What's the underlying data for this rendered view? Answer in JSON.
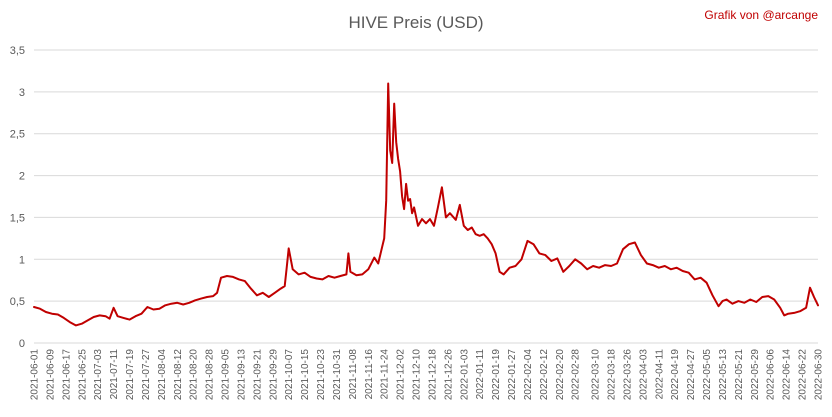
{
  "chart_data": {
    "type": "line",
    "title": "HIVE Preis (USD)",
    "annotation": "Grafik von @arcange",
    "xlabel": "",
    "ylabel": "",
    "ylim": [
      0,
      3.5
    ],
    "yticks": [
      "0",
      "0,5",
      "1",
      "1,5",
      "2",
      "2,5",
      "3",
      "3,5"
    ],
    "ytick_values": [
      0,
      0.5,
      1,
      1.5,
      2,
      2.5,
      3,
      3.5
    ],
    "grid": true,
    "line_color": "#c00000",
    "x_start": "2021-06-01",
    "x_end": "2022-06-30",
    "xticks": [
      "2021-06-01",
      "2021-06-09",
      "2021-06-17",
      "2021-06-25",
      "2021-07-03",
      "2021-07-11",
      "2021-07-19",
      "2021-07-27",
      "2021-08-04",
      "2021-08-12",
      "2021-08-20",
      "2021-08-28",
      "2021-09-05",
      "2021-09-13",
      "2021-09-21",
      "2021-09-29",
      "2021-10-07",
      "2021-10-15",
      "2021-10-23",
      "2021-10-31",
      "2021-11-08",
      "2021-11-16",
      "2021-11-24",
      "2021-12-02",
      "2021-12-10",
      "2021-12-18",
      "2021-12-26",
      "2022-01-03",
      "2022-01-11",
      "2022-01-19",
      "2022-01-27",
      "2022-02-04",
      "2022-02-12",
      "2022-02-20",
      "2022-02-28",
      "2022-03-10",
      "2022-03-18",
      "2022-03-26",
      "2022-04-03",
      "2022-04-11",
      "2022-04-19",
      "2022-04-27",
      "2022-05-05",
      "2022-05-13",
      "2022-05-21",
      "2022-05-29",
      "2022-06-06",
      "2022-06-14",
      "2022-06-22",
      "2022-06-30"
    ],
    "series": [
      {
        "x": [
          "2021-06-01",
          "2021-06-04",
          "2021-06-07",
          "2021-06-10",
          "2021-06-13",
          "2021-06-16",
          "2021-06-19",
          "2021-06-22",
          "2021-06-25",
          "2021-06-28",
          "2021-07-01",
          "2021-07-04",
          "2021-07-07",
          "2021-07-09",
          "2021-07-11",
          "2021-07-13",
          "2021-07-16",
          "2021-07-19",
          "2021-07-22",
          "2021-07-25",
          "2021-07-28",
          "2021-07-31",
          "2021-08-03",
          "2021-08-06",
          "2021-08-09",
          "2021-08-12",
          "2021-08-15",
          "2021-08-18",
          "2021-08-21",
          "2021-08-24",
          "2021-08-27",
          "2021-08-30",
          "2021-09-01",
          "2021-09-03",
          "2021-09-06",
          "2021-09-09",
          "2021-09-12",
          "2021-09-15",
          "2021-09-18",
          "2021-09-21",
          "2021-09-24",
          "2021-09-27",
          "2021-09-30",
          "2021-10-03",
          "2021-10-05",
          "2021-10-06",
          "2021-10-07",
          "2021-10-09",
          "2021-10-12",
          "2021-10-15",
          "2021-10-18",
          "2021-10-21",
          "2021-10-24",
          "2021-10-27",
          "2021-10-30",
          "2021-11-02",
          "2021-11-05",
          "2021-11-06",
          "2021-11-07",
          "2021-11-10",
          "2021-11-13",
          "2021-11-16",
          "2021-11-19",
          "2021-11-21",
          "2021-11-23",
          "2021-11-24",
          "2021-11-25",
          "2021-11-26",
          "2021-11-27",
          "2021-11-28",
          "2021-11-29",
          "2021-11-30",
          "2021-12-01",
          "2021-12-02",
          "2021-12-03",
          "2021-12-04",
          "2021-12-05",
          "2021-12-06",
          "2021-12-07",
          "2021-12-08",
          "2021-12-09",
          "2021-12-11",
          "2021-12-13",
          "2021-12-15",
          "2021-12-17",
          "2021-12-19",
          "2021-12-21",
          "2021-12-23",
          "2021-12-25",
          "2021-12-27",
          "2021-12-30",
          "2022-01-01",
          "2022-01-03",
          "2022-01-05",
          "2022-01-07",
          "2022-01-09",
          "2022-01-11",
          "2022-01-13",
          "2022-01-15",
          "2022-01-17",
          "2022-01-19",
          "2022-01-21",
          "2022-01-23",
          "2022-01-26",
          "2022-01-29",
          "2022-02-01",
          "2022-02-04",
          "2022-02-07",
          "2022-02-10",
          "2022-02-13",
          "2022-02-16",
          "2022-02-19",
          "2022-02-22",
          "2022-02-25",
          "2022-02-28",
          "2022-03-03",
          "2022-03-06",
          "2022-03-09",
          "2022-03-12",
          "2022-03-15",
          "2022-03-18",
          "2022-03-21",
          "2022-03-24",
          "2022-03-27",
          "2022-03-30",
          "2022-04-02",
          "2022-04-05",
          "2022-04-08",
          "2022-04-11",
          "2022-04-14",
          "2022-04-17",
          "2022-04-20",
          "2022-04-23",
          "2022-04-26",
          "2022-04-29",
          "2022-05-02",
          "2022-05-05",
          "2022-05-08",
          "2022-05-11",
          "2022-05-13",
          "2022-05-15",
          "2022-05-18",
          "2022-05-21",
          "2022-05-24",
          "2022-05-27",
          "2022-05-30",
          "2022-06-02",
          "2022-06-05",
          "2022-06-08",
          "2022-06-11",
          "2022-06-13",
          "2022-06-15",
          "2022-06-18",
          "2022-06-21",
          "2022-06-24",
          "2022-06-26",
          "2022-06-28",
          "2022-06-30"
        ],
        "y": [
          0.43,
          0.41,
          0.37,
          0.35,
          0.34,
          0.3,
          0.25,
          0.21,
          0.23,
          0.27,
          0.31,
          0.33,
          0.32,
          0.29,
          0.42,
          0.32,
          0.3,
          0.28,
          0.32,
          0.35,
          0.43,
          0.4,
          0.41,
          0.45,
          0.47,
          0.48,
          0.46,
          0.48,
          0.51,
          0.53,
          0.55,
          0.56,
          0.6,
          0.78,
          0.8,
          0.79,
          0.76,
          0.74,
          0.65,
          0.57,
          0.6,
          0.55,
          0.6,
          0.65,
          0.68,
          0.9,
          1.13,
          0.88,
          0.82,
          0.84,
          0.79,
          0.77,
          0.76,
          0.8,
          0.78,
          0.8,
          0.82,
          1.07,
          0.85,
          0.81,
          0.82,
          0.88,
          1.02,
          0.95,
          1.15,
          1.25,
          1.7,
          3.1,
          2.3,
          2.15,
          2.86,
          2.4,
          2.2,
          2.05,
          1.75,
          1.6,
          1.9,
          1.7,
          1.72,
          1.55,
          1.62,
          1.4,
          1.48,
          1.43,
          1.48,
          1.4,
          1.62,
          1.86,
          1.5,
          1.55,
          1.47,
          1.65,
          1.4,
          1.35,
          1.38,
          1.3,
          1.28,
          1.3,
          1.25,
          1.18,
          1.07,
          0.85,
          0.82,
          0.9,
          0.92,
          1.0,
          1.22,
          1.18,
          1.07,
          1.05,
          0.98,
          1.01,
          0.85,
          0.92,
          1.0,
          0.95,
          0.88,
          0.92,
          0.9,
          0.93,
          0.92,
          0.95,
          1.12,
          1.18,
          1.2,
          1.05,
          0.95,
          0.93,
          0.9,
          0.92,
          0.88,
          0.9,
          0.86,
          0.84,
          0.76,
          0.78,
          0.72,
          0.57,
          0.44,
          0.5,
          0.52,
          0.47,
          0.5,
          0.48,
          0.52,
          0.49,
          0.55,
          0.56,
          0.52,
          0.42,
          0.33,
          0.35,
          0.36,
          0.38,
          0.42,
          0.66,
          0.55,
          0.45
        ]
      }
    ]
  }
}
